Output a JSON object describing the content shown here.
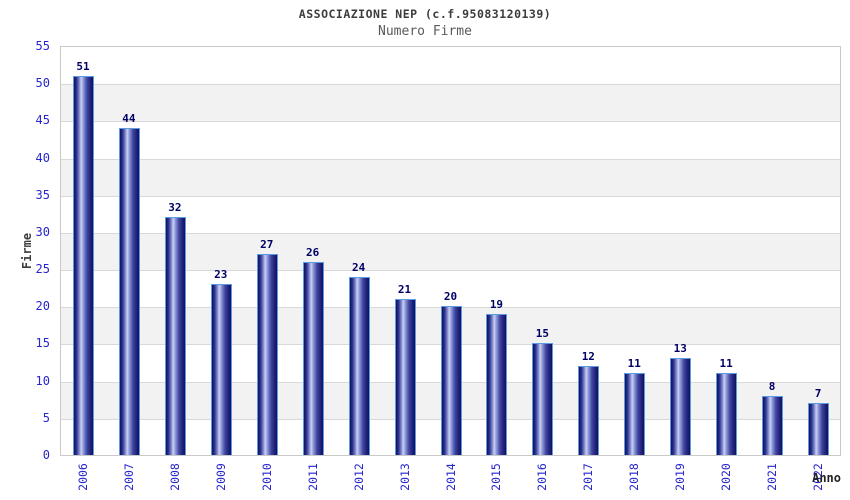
{
  "chart_data": {
    "type": "bar",
    "title": "ASSOCIAZIONE NEP (c.f.95083120139)",
    "subtitle": "Numero Firme",
    "xlabel": "Anno",
    "ylabel": "Firme",
    "categories": [
      "2006",
      "2007",
      "2008",
      "2009",
      "2010",
      "2011",
      "2012",
      "2013",
      "2014",
      "2015",
      "2016",
      "2017",
      "2018",
      "2019",
      "2020",
      "2021",
      "2022"
    ],
    "values": [
      51,
      44,
      32,
      23,
      27,
      26,
      24,
      21,
      20,
      19,
      15,
      12,
      11,
      13,
      11,
      8,
      7
    ],
    "ylim": [
      0,
      55
    ],
    "ytick_step": 5,
    "yticks": [
      0,
      5,
      10,
      15,
      20,
      25,
      30,
      35,
      40,
      45,
      50,
      55
    ],
    "grid": "horizontal gridlines every 5 units with alternating white/gray bands",
    "legend": "none",
    "bar_value_labels": "shown above each bar",
    "colors": {
      "bar_dark": "#10105e",
      "bar_highlight": "#c9d0f2",
      "bar_border": "#5b9be0",
      "axis_label_blue": "#2626cc",
      "value_label_navy": "#000066",
      "band_gray": "#f2f2f2",
      "gridline": "#d9d9d9",
      "title_gray": "#3c3c3c",
      "subtitle_gray": "#5a5a5a"
    }
  }
}
